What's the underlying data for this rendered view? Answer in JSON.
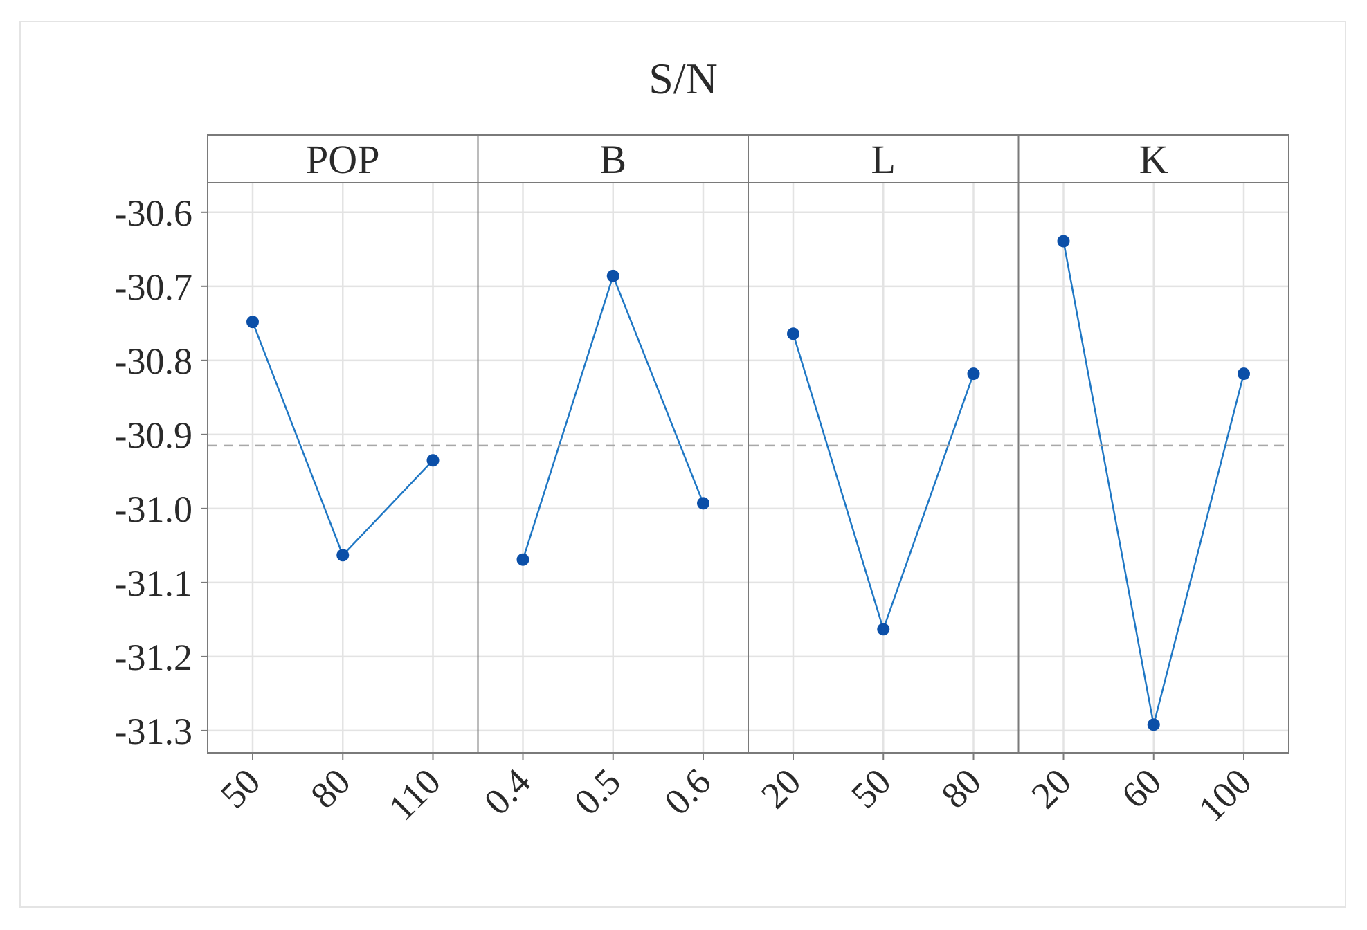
{
  "chart_data": {
    "type": "line",
    "title": "S/N",
    "xlabel": "",
    "ylabel": "",
    "ylim": [
      -31.33,
      -30.56
    ],
    "yticks": [
      -30.6,
      -30.7,
      -30.8,
      -30.9,
      -31.0,
      -31.1,
      -31.2,
      -31.3
    ],
    "ytick_labels": [
      "-30.6",
      "-30.7",
      "-30.8",
      "-30.9",
      "-31.0",
      "-31.1",
      "-31.2",
      "-31.3"
    ],
    "reference_line": {
      "value": -30.915,
      "style": "dashed"
    },
    "grid": true,
    "line_color": "#1f77c4",
    "marker_color": "#0b4fa8",
    "panels": [
      {
        "name": "POP",
        "categories": [
          "50",
          "80",
          "110"
        ],
        "values": [
          -30.748,
          -31.063,
          -30.935
        ]
      },
      {
        "name": "B",
        "categories": [
          "0.4",
          "0.5",
          "0.6"
        ],
        "values": [
          -31.069,
          -30.686,
          -30.993
        ]
      },
      {
        "name": "L",
        "categories": [
          "20",
          "50",
          "80"
        ],
        "values": [
          -30.764,
          -31.163,
          -30.818
        ]
      },
      {
        "name": "K",
        "categories": [
          "20",
          "60",
          "100"
        ],
        "values": [
          -30.639,
          -31.292,
          -30.818
        ]
      }
    ]
  }
}
